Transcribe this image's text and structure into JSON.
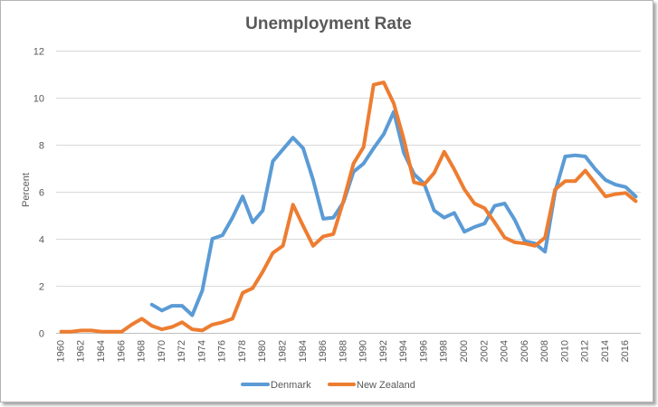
{
  "chart_data": {
    "type": "line",
    "title": "Unemployment Rate",
    "ylabel": "Percent",
    "xlim": [
      1960,
      2017
    ],
    "ylim": [
      0,
      12
    ],
    "yticks": [
      0,
      2,
      4,
      6,
      8,
      10,
      12
    ],
    "xticks": [
      1960,
      1962,
      1964,
      1966,
      1968,
      1970,
      1972,
      1974,
      1976,
      1978,
      1980,
      1982,
      1984,
      1986,
      1988,
      1990,
      1992,
      1994,
      1996,
      1998,
      2000,
      2002,
      2004,
      2006,
      2008,
      2010,
      2012,
      2014,
      2016
    ],
    "grid": true,
    "legend": "bottom",
    "x": [
      1960,
      1961,
      1962,
      1963,
      1964,
      1965,
      1966,
      1967,
      1968,
      1969,
      1970,
      1971,
      1972,
      1973,
      1974,
      1975,
      1976,
      1977,
      1978,
      1979,
      1980,
      1981,
      1982,
      1983,
      1984,
      1985,
      1986,
      1987,
      1988,
      1989,
      1990,
      1991,
      1992,
      1993,
      1994,
      1995,
      1996,
      1997,
      1998,
      1999,
      2000,
      2001,
      2002,
      2003,
      2004,
      2005,
      2006,
      2007,
      2008,
      2009,
      2010,
      2011,
      2012,
      2013,
      2014,
      2015,
      2016,
      2017
    ],
    "series": [
      {
        "name": "Denmark",
        "color": "#5B9BD5",
        "values": [
          null,
          null,
          null,
          null,
          null,
          null,
          null,
          null,
          null,
          1.2,
          0.95,
          1.15,
          1.15,
          0.75,
          1.8,
          4.0,
          4.15,
          4.9,
          5.8,
          4.7,
          5.2,
          7.3,
          7.8,
          8.3,
          7.85,
          6.5,
          4.85,
          4.9,
          5.55,
          6.85,
          7.2,
          7.85,
          8.45,
          9.4,
          7.65,
          6.75,
          6.35,
          5.2,
          4.9,
          5.1,
          4.3,
          4.5,
          4.65,
          5.4,
          5.5,
          4.8,
          3.9,
          3.8,
          3.45,
          6.0,
          7.5,
          7.55,
          7.5,
          6.95,
          6.5,
          6.3,
          6.2,
          5.8
        ]
      },
      {
        "name": "New Zealand",
        "color": "#ED7D31",
        "values": [
          0.05,
          0.05,
          0.1,
          0.1,
          0.05,
          0.05,
          0.05,
          0.35,
          0.6,
          0.3,
          0.15,
          0.25,
          0.45,
          0.15,
          0.1,
          0.35,
          0.45,
          0.6,
          1.7,
          1.9,
          2.6,
          3.4,
          3.7,
          5.45,
          4.55,
          3.7,
          4.1,
          4.2,
          5.6,
          7.2,
          7.9,
          10.55,
          10.65,
          9.75,
          8.2,
          6.4,
          6.3,
          6.8,
          7.7,
          6.95,
          6.1,
          5.5,
          5.3,
          4.7,
          4.05,
          3.85,
          3.8,
          3.7,
          4.05,
          6.1,
          6.45,
          6.45,
          6.9,
          6.35,
          5.8,
          5.9,
          5.95,
          5.6
        ]
      }
    ]
  }
}
